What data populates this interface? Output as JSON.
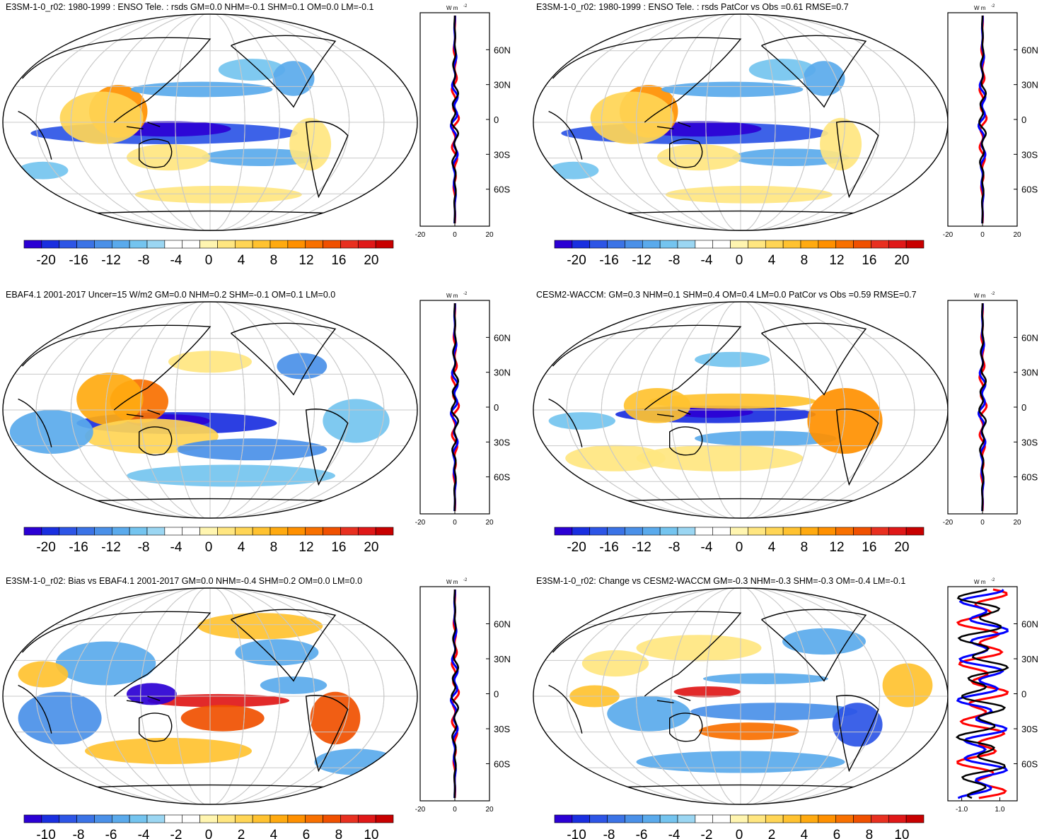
{
  "palette_21": [
    "#2b00d4",
    "#1a2fe0",
    "#2d55e6",
    "#3b73e6",
    "#4a90e8",
    "#5aaaec",
    "#74c4ef",
    "#9bd6f2",
    "#ffffff",
    "#ffffff",
    "#fff5b0",
    "#ffe680",
    "#ffd555",
    "#ffc230",
    "#ffaa10",
    "#ff9000",
    "#f87000",
    "#f05000",
    "#e83020",
    "#e01818",
    "#c80000"
  ],
  "map_colors": {
    "ocean": "#ffffff",
    "grid": "#c8c8c8",
    "coast": "#000000",
    "line_model": "#ff0000",
    "line_obs": "#0000ff",
    "line_mean": "#000000"
  },
  "chart_data": [
    {
      "type": "heatmap",
      "title": "E3SM-1-0_r02: 1980-1999 : ENSO Tele. : rsds GM=0.0 NHM=-0.1 SHM=0.1 OM=0.0 LM=-0.1",
      "colorbar_ticks": [
        "-20",
        "-16",
        "-12",
        "-8",
        "-4",
        "0",
        "4",
        "8",
        "12",
        "16",
        "20"
      ],
      "zonal_mean": {
        "unit": "W m",
        "unit_exp": "-2",
        "lat_labels": [
          "60N",
          "30N",
          "0",
          "30S",
          "60S"
        ],
        "xticks": [
          "-20",
          "0",
          "20"
        ],
        "xlim": [
          -20,
          20
        ]
      }
    },
    {
      "type": "heatmap",
      "title": "E3SM-1-0_r02: 1980-1999 : ENSO Tele. : rsds PatCor vs Obs =0.61 RMSE=0.7",
      "colorbar_ticks": [
        "-20",
        "-16",
        "-12",
        "-8",
        "-4",
        "0",
        "4",
        "8",
        "12",
        "16",
        "20"
      ],
      "zonal_mean": {
        "unit": "W m",
        "unit_exp": "-2",
        "lat_labels": [
          "60N",
          "30N",
          "0",
          "30S",
          "60S"
        ],
        "xticks": [
          "-20",
          "0",
          "20"
        ],
        "xlim": [
          -20,
          20
        ]
      }
    },
    {
      "type": "heatmap",
      "title": "EBAF4.1 2001-2017 Uncer=15 W/m2 GM=0.0 NHM=0.2 SHM=-0.1 OM=0.1 LM=0.0",
      "colorbar_ticks": [
        "-20",
        "-16",
        "-12",
        "-8",
        "-4",
        "0",
        "4",
        "8",
        "12",
        "16",
        "20"
      ],
      "zonal_mean": {
        "unit": "W m",
        "unit_exp": "-2",
        "lat_labels": [
          "60N",
          "30N",
          "0",
          "30S",
          "60S"
        ],
        "xticks": [
          "-20",
          "0",
          "20"
        ],
        "xlim": [
          -20,
          20
        ]
      }
    },
    {
      "type": "heatmap",
      "title": "CESM2-WACCM: GM=0.3 NHM=0.1 SHM=0.4 OM=0.4 LM=0.0 PatCor vs Obs =0.59 RMSE=0.7",
      "colorbar_ticks": [
        "-20",
        "-16",
        "-12",
        "-8",
        "-4",
        "0",
        "4",
        "8",
        "12",
        "16",
        "20"
      ],
      "zonal_mean": {
        "unit": "W m",
        "unit_exp": "-2",
        "lat_labels": [
          "60N",
          "30N",
          "0",
          "30S",
          "60S"
        ],
        "xticks": [
          "-20",
          "0",
          "20"
        ],
        "xlim": [
          -20,
          20
        ]
      }
    },
    {
      "type": "heatmap",
      "title": "E3SM-1-0_r02: Bias vs EBAF4.1 2001-2017 GM=0.0 NHM=-0.4 SHM=0.2 OM=0.0 LM=0.0",
      "colorbar_ticks": [
        "-10",
        "-8",
        "-6",
        "-4",
        "-2",
        "0",
        "2",
        "4",
        "6",
        "8",
        "10"
      ],
      "zonal_mean": {
        "unit": "W m",
        "unit_exp": "-2",
        "lat_labels": [
          "60N",
          "30N",
          "0",
          "30S",
          "60S"
        ],
        "xticks": [
          "-20",
          "0",
          "20"
        ],
        "xlim": [
          -20,
          20
        ]
      }
    },
    {
      "type": "heatmap",
      "title": "E3SM-1-0_r02: Change vs CESM2-WACCM GM=-0.3 NHM=-0.3 SHM=-0.3 OM=-0.4 LM=-0.1",
      "colorbar_ticks": [
        "-10",
        "-8",
        "-6",
        "-4",
        "-2",
        "0",
        "2",
        "4",
        "6",
        "8",
        "10"
      ],
      "zonal_mean": {
        "unit": "W m",
        "unit_exp": "-2",
        "lat_labels": [
          "60N",
          "30N",
          "0",
          "30S",
          "60S"
        ],
        "xticks": [
          "-1.0",
          "1.0"
        ],
        "xlim": [
          -1.5,
          1.5
        ]
      }
    }
  ]
}
